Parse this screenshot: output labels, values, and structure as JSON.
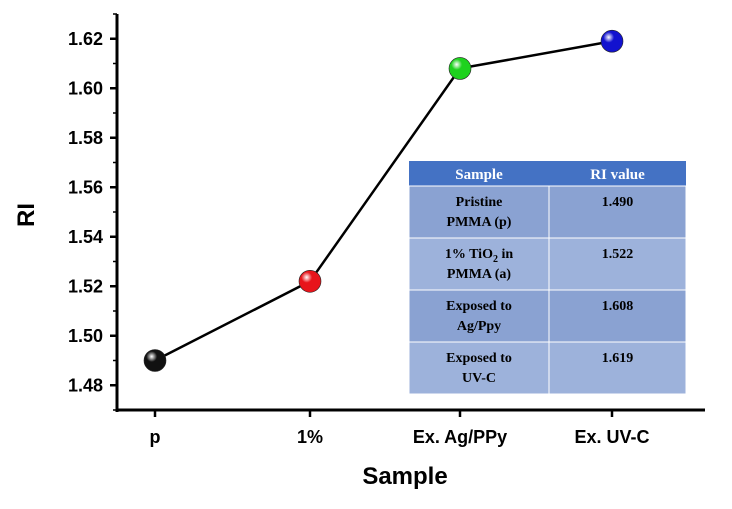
{
  "chart_data": {
    "type": "line",
    "xlabel": "Sample",
    "ylabel": "RI",
    "categories": [
      "p",
      "1%",
      "Ex. Ag/PPy",
      "Ex. UV-C"
    ],
    "values": [
      1.49,
      1.522,
      1.608,
      1.619
    ],
    "marker_colors": [
      "#111111",
      "#e8141b",
      "#1ed21e",
      "#1212cf"
    ],
    "ylim": [
      1.47,
      1.63
    ],
    "yticks": [
      "1.48",
      "1.50",
      "1.52",
      "1.54",
      "1.56",
      "1.58",
      "1.60",
      "1.62"
    ],
    "ytick_values": [
      1.48,
      1.5,
      1.52,
      1.54,
      1.56,
      1.58,
      1.6,
      1.62
    ],
    "grid": false,
    "line_color": "#000000"
  },
  "table": {
    "header": [
      "Sample",
      "RI value"
    ],
    "rows": [
      {
        "sample": [
          "Pristine",
          "PMMA (p)"
        ],
        "value": "1.490"
      },
      {
        "sample": [
          "1% TiO",
          "2",
          " in",
          "PMMA (a)"
        ],
        "value": "1.522"
      },
      {
        "sample": [
          "Exposed to",
          "Ag/Ppy"
        ],
        "value": "1.608"
      },
      {
        "sample": [
          "Exposed to",
          "UV-C"
        ],
        "value": "1.619"
      }
    ],
    "header_color": "#4472c4",
    "row_colors": [
      "#8aa2d2",
      "#9db2db"
    ]
  }
}
